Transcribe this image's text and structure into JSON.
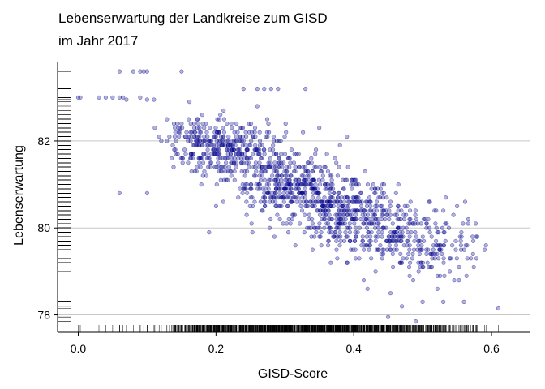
{
  "chart_data": {
    "type": "scatter",
    "title": "Lebenserwartung der Landkreise zum GISD",
    "subtitle": "im Jahr 2017",
    "xlabel": "GISD-Score",
    "ylabel": "Lebenserwartung",
    "xlim": [
      -0.03,
      0.64
    ],
    "ylim": [
      77.6,
      83.9
    ],
    "xticks": [
      0.0,
      0.2,
      0.4,
      0.6
    ],
    "xtick_labels": [
      "0.0",
      "0.2",
      "0.4",
      "0.6"
    ],
    "yticks": [
      78,
      80,
      82
    ],
    "ytick_labels": [
      "78",
      "80",
      "82"
    ],
    "grid": "horizontal",
    "rug": [
      "bottom",
      "left"
    ],
    "point_color": "#00008B",
    "point_alpha": 0.3,
    "cloud": [
      {
        "x": 0.22,
        "y": 81.8,
        "sx": 0.04,
        "sy": 0.32,
        "n": 280
      },
      {
        "x": 0.3,
        "y": 81.0,
        "sx": 0.04,
        "sy": 0.35,
        "n": 320
      },
      {
        "x": 0.38,
        "y": 80.4,
        "sx": 0.04,
        "sy": 0.35,
        "n": 300
      },
      {
        "x": 0.45,
        "y": 79.9,
        "sx": 0.045,
        "sy": 0.4,
        "n": 220
      },
      {
        "x": 0.52,
        "y": 79.5,
        "sx": 0.035,
        "sy": 0.35,
        "n": 110
      },
      {
        "x": 0.17,
        "y": 82.1,
        "sx": 0.03,
        "sy": 0.3,
        "n": 70
      }
    ],
    "points": [
      {
        "x": 0.0,
        "y": 83.0
      },
      {
        "x": 0.003,
        "y": 83.0
      },
      {
        "x": 0.03,
        "y": 83.0
      },
      {
        "x": 0.04,
        "y": 83.0
      },
      {
        "x": 0.05,
        "y": 83.0
      },
      {
        "x": 0.06,
        "y": 83.0
      },
      {
        "x": 0.065,
        "y": 83.0
      },
      {
        "x": 0.07,
        "y": 82.95
      },
      {
        "x": 0.09,
        "y": 83.0
      },
      {
        "x": 0.1,
        "y": 82.95
      },
      {
        "x": 0.11,
        "y": 82.95
      },
      {
        "x": 0.06,
        "y": 83.6
      },
      {
        "x": 0.08,
        "y": 83.6
      },
      {
        "x": 0.09,
        "y": 83.6
      },
      {
        "x": 0.095,
        "y": 83.6
      },
      {
        "x": 0.1,
        "y": 83.6
      },
      {
        "x": 0.15,
        "y": 83.6
      },
      {
        "x": 0.24,
        "y": 83.2
      },
      {
        "x": 0.26,
        "y": 83.2
      },
      {
        "x": 0.27,
        "y": 83.2
      },
      {
        "x": 0.28,
        "y": 83.2
      },
      {
        "x": 0.29,
        "y": 83.2
      },
      {
        "x": 0.33,
        "y": 83.2
      },
      {
        "x": 0.06,
        "y": 80.8
      },
      {
        "x": 0.1,
        "y": 80.8
      },
      {
        "x": 0.19,
        "y": 79.9
      },
      {
        "x": 0.35,
        "y": 82.3
      },
      {
        "x": 0.38,
        "y": 81.9
      },
      {
        "x": 0.39,
        "y": 82.1
      },
      {
        "x": 0.61,
        "y": 78.15
      },
      {
        "x": 0.56,
        "y": 78.3
      },
      {
        "x": 0.49,
        "y": 77.85
      },
      {
        "x": 0.45,
        "y": 77.95
      },
      {
        "x": 0.47,
        "y": 78.2
      },
      {
        "x": 0.5,
        "y": 78.3
      },
      {
        "x": 0.53,
        "y": 78.3
      },
      {
        "x": 0.42,
        "y": 78.6
      },
      {
        "x": 0.53,
        "y": 80.4
      },
      {
        "x": 0.55,
        "y": 80.5
      },
      {
        "x": 0.59,
        "y": 79.5
      },
      {
        "x": 0.57,
        "y": 79.3
      }
    ]
  }
}
